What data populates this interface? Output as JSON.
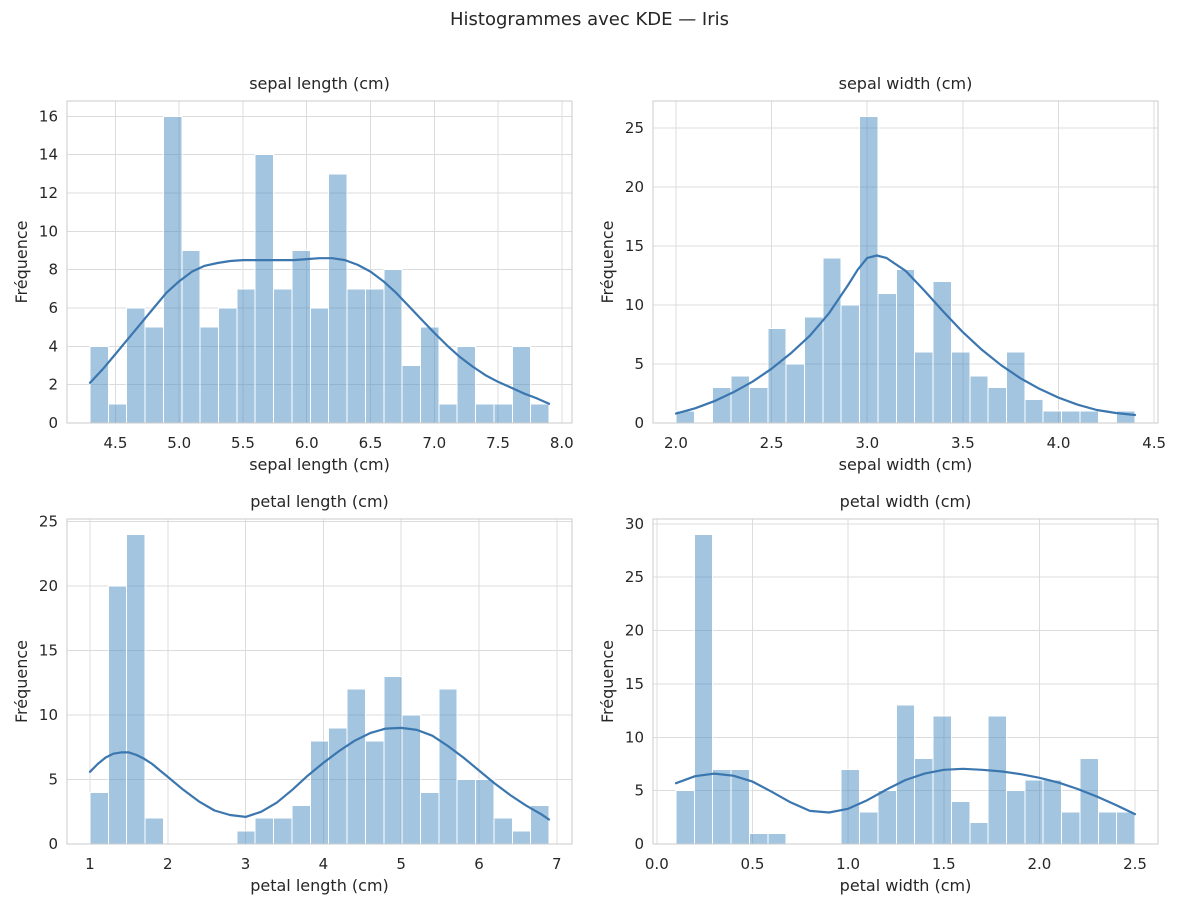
{
  "figure": {
    "title": "Histogrammes avec KDE — Iris"
  },
  "colors": {
    "bar_fill_rgba": "rgba(79,143,196,0.52)",
    "bar_edge": "#ffffff",
    "kde_line": "#3b76af",
    "grid": "#dcdcdc",
    "spine": "#cbcbcb",
    "text": "#262626"
  },
  "chart_data": [
    {
      "type": "bar",
      "subtype": "histogram+kde",
      "id": "sepal-length",
      "title": "sepal length (cm)",
      "xlabel": "sepal length (cm)",
      "ylabel": "Fréquence",
      "bin_start": 4.3,
      "bin_width": 0.144,
      "values": [
        4,
        1,
        6,
        5,
        16,
        9,
        5,
        6,
        7,
        14,
        7,
        9,
        6,
        13,
        7,
        7,
        8,
        3,
        5,
        1,
        4,
        1,
        1,
        4,
        1
      ],
      "kde": [
        [
          4.3,
          2.1
        ],
        [
          4.4,
          2.8
        ],
        [
          4.5,
          3.6
        ],
        [
          4.6,
          4.4
        ],
        [
          4.7,
          5.2
        ],
        [
          4.8,
          6.0
        ],
        [
          4.9,
          6.8
        ],
        [
          5.0,
          7.4
        ],
        [
          5.1,
          7.9
        ],
        [
          5.2,
          8.2
        ],
        [
          5.3,
          8.35
        ],
        [
          5.4,
          8.45
        ],
        [
          5.5,
          8.5
        ],
        [
          5.7,
          8.5
        ],
        [
          5.9,
          8.5
        ],
        [
          6.0,
          8.55
        ],
        [
          6.1,
          8.6
        ],
        [
          6.2,
          8.6
        ],
        [
          6.3,
          8.5
        ],
        [
          6.4,
          8.25
        ],
        [
          6.5,
          7.9
        ],
        [
          6.6,
          7.4
        ],
        [
          6.7,
          6.8
        ],
        [
          6.8,
          6.1
        ],
        [
          6.9,
          5.4
        ],
        [
          7.0,
          4.7
        ],
        [
          7.1,
          4.05
        ],
        [
          7.2,
          3.45
        ],
        [
          7.3,
          2.95
        ],
        [
          7.4,
          2.5
        ],
        [
          7.5,
          2.15
        ],
        [
          7.6,
          1.85
        ],
        [
          7.7,
          1.55
        ],
        [
          7.8,
          1.3
        ],
        [
          7.9,
          1.0
        ]
      ],
      "xlim": [
        4.12,
        8.08
      ],
      "ylim": [
        0,
        16.8
      ],
      "xticks": [
        4.5,
        5.0,
        5.5,
        6.0,
        6.5,
        7.0,
        7.5,
        8.0
      ],
      "xtick_labels": [
        "4.5",
        "5.0",
        "5.5",
        "6.0",
        "6.5",
        "7.0",
        "7.5",
        "8.0"
      ],
      "yticks": [
        0,
        2,
        4,
        6,
        8,
        10,
        12,
        14,
        16
      ],
      "ytick_labels": [
        "0",
        "2",
        "4",
        "6",
        "8",
        "10",
        "12",
        "14",
        "16"
      ],
      "grid": true
    },
    {
      "type": "bar",
      "subtype": "histogram+kde",
      "id": "sepal-width",
      "title": "sepal width (cm)",
      "xlabel": "sepal width (cm)",
      "ylabel": "Fréquence",
      "bin_start": 2.0,
      "bin_width": 0.096,
      "values": [
        1,
        0,
        3,
        4,
        3,
        8,
        5,
        9,
        14,
        10,
        26,
        11,
        13,
        6,
        12,
        6,
        4,
        3,
        6,
        2,
        1,
        1,
        1,
        0,
        1
      ],
      "kde": [
        [
          2.0,
          0.8
        ],
        [
          2.1,
          1.25
        ],
        [
          2.2,
          1.85
        ],
        [
          2.3,
          2.6
        ],
        [
          2.4,
          3.5
        ],
        [
          2.5,
          4.6
        ],
        [
          2.6,
          5.9
        ],
        [
          2.7,
          7.4
        ],
        [
          2.8,
          9.3
        ],
        [
          2.9,
          11.7
        ],
        [
          2.95,
          13.0
        ],
        [
          3.0,
          14.0
        ],
        [
          3.05,
          14.2
        ],
        [
          3.1,
          14.0
        ],
        [
          3.2,
          12.9
        ],
        [
          3.3,
          11.2
        ],
        [
          3.4,
          9.4
        ],
        [
          3.5,
          7.7
        ],
        [
          3.6,
          6.2
        ],
        [
          3.7,
          4.9
        ],
        [
          3.8,
          3.8
        ],
        [
          3.9,
          2.9
        ],
        [
          4.0,
          2.15
        ],
        [
          4.1,
          1.55
        ],
        [
          4.2,
          1.1
        ],
        [
          4.3,
          0.85
        ],
        [
          4.4,
          0.68
        ]
      ],
      "xlim": [
        1.88,
        4.52
      ],
      "ylim": [
        0,
        27.3
      ],
      "xticks": [
        2.0,
        2.5,
        3.0,
        3.5,
        4.0,
        4.5
      ],
      "xtick_labels": [
        "2.0",
        "2.5",
        "3.0",
        "3.5",
        "4.0",
        "4.5"
      ],
      "yticks": [
        0,
        5,
        10,
        15,
        20,
        25
      ],
      "ytick_labels": [
        "0",
        "5",
        "10",
        "15",
        "20",
        "25"
      ],
      "grid": true
    },
    {
      "type": "bar",
      "subtype": "histogram+kde",
      "id": "petal-length",
      "title": "petal length (cm)",
      "xlabel": "petal length (cm)",
      "ylabel": "Fréquence",
      "bin_start": 1.0,
      "bin_width": 0.236,
      "values": [
        4,
        20,
        24,
        2,
        0,
        0,
        0,
        0,
        1,
        2,
        2,
        3,
        8,
        9,
        12,
        8,
        13,
        10,
        4,
        12,
        5,
        5,
        2,
        1,
        3
      ],
      "kde": [
        [
          1.0,
          5.6
        ],
        [
          1.1,
          6.2
        ],
        [
          1.2,
          6.7
        ],
        [
          1.3,
          7.0
        ],
        [
          1.4,
          7.1
        ],
        [
          1.5,
          7.1
        ],
        [
          1.6,
          6.9
        ],
        [
          1.7,
          6.6
        ],
        [
          1.8,
          6.2
        ],
        [
          1.9,
          5.7
        ],
        [
          2.0,
          5.2
        ],
        [
          2.2,
          4.2
        ],
        [
          2.4,
          3.3
        ],
        [
          2.6,
          2.6
        ],
        [
          2.8,
          2.25
        ],
        [
          3.0,
          2.1
        ],
        [
          3.2,
          2.5
        ],
        [
          3.4,
          3.2
        ],
        [
          3.6,
          4.2
        ],
        [
          3.8,
          5.3
        ],
        [
          4.0,
          6.3
        ],
        [
          4.2,
          7.2
        ],
        [
          4.4,
          8.0
        ],
        [
          4.6,
          8.6
        ],
        [
          4.8,
          8.95
        ],
        [
          5.0,
          9.0
        ],
        [
          5.2,
          8.85
        ],
        [
          5.4,
          8.4
        ],
        [
          5.6,
          7.6
        ],
        [
          5.8,
          6.7
        ],
        [
          6.0,
          5.7
        ],
        [
          6.2,
          4.7
        ],
        [
          6.4,
          3.8
        ],
        [
          6.6,
          3.0
        ],
        [
          6.8,
          2.3
        ],
        [
          6.9,
          1.9
        ]
      ],
      "xlim": [
        0.705,
        7.195
      ],
      "ylim": [
        0,
        25.2
      ],
      "xticks": [
        1,
        2,
        3,
        4,
        5,
        6,
        7
      ],
      "xtick_labels": [
        "1",
        "2",
        "3",
        "4",
        "5",
        "6",
        "7"
      ],
      "yticks": [
        0,
        5,
        10,
        15,
        20,
        25
      ],
      "ytick_labels": [
        "0",
        "5",
        "10",
        "15",
        "20",
        "25"
      ],
      "grid": true
    },
    {
      "type": "bar",
      "subtype": "histogram+kde",
      "id": "petal-width",
      "title": "petal width (cm)",
      "xlabel": "petal width (cm)",
      "ylabel": "Fréquence",
      "bin_start": 0.1,
      "bin_width": 0.096,
      "values": [
        5,
        29,
        7,
        7,
        1,
        1,
        0,
        0,
        0,
        7,
        3,
        5,
        13,
        8,
        12,
        4,
        2,
        12,
        5,
        6,
        6,
        3,
        8,
        3,
        3
      ],
      "kde": [
        [
          0.1,
          5.7
        ],
        [
          0.2,
          6.35
        ],
        [
          0.3,
          6.6
        ],
        [
          0.4,
          6.4
        ],
        [
          0.5,
          5.85
        ],
        [
          0.6,
          4.9
        ],
        [
          0.7,
          3.9
        ],
        [
          0.8,
          3.1
        ],
        [
          0.9,
          2.95
        ],
        [
          1.0,
          3.3
        ],
        [
          1.1,
          4.1
        ],
        [
          1.2,
          5.1
        ],
        [
          1.3,
          6.0
        ],
        [
          1.4,
          6.6
        ],
        [
          1.5,
          6.95
        ],
        [
          1.6,
          7.05
        ],
        [
          1.7,
          6.95
        ],
        [
          1.8,
          6.8
        ],
        [
          1.9,
          6.55
        ],
        [
          2.0,
          6.2
        ],
        [
          2.1,
          5.75
        ],
        [
          2.2,
          5.15
        ],
        [
          2.3,
          4.45
        ],
        [
          2.4,
          3.65
        ],
        [
          2.5,
          2.8
        ]
      ],
      "xlim": [
        -0.02,
        2.62
      ],
      "ylim": [
        0,
        30.45
      ],
      "xticks": [
        0.0,
        0.5,
        1.0,
        1.5,
        2.0,
        2.5
      ],
      "xtick_labels": [
        "0.0",
        "0.5",
        "1.0",
        "1.5",
        "2.0",
        "2.5"
      ],
      "yticks": [
        0,
        5,
        10,
        15,
        20,
        25,
        30
      ],
      "ytick_labels": [
        "0",
        "5",
        "10",
        "15",
        "20",
        "25",
        "30"
      ],
      "grid": true
    }
  ]
}
